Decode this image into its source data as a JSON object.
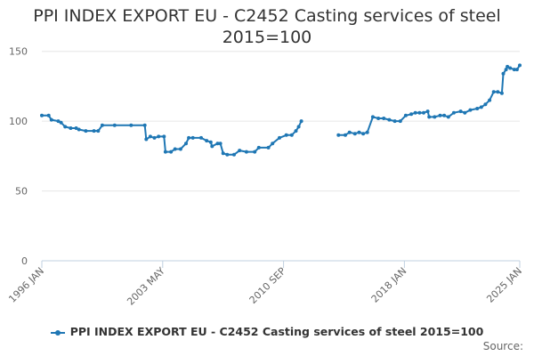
{
  "title_lines": [
    "PPI INDEX EXPORT EU - C2452 Casting services of steel",
    "2015=100"
  ],
  "legend_label": "PPI INDEX EXPORT EU - C2452 Casting services of steel 2015=100",
  "source_label": "Source:",
  "series_color": "#1f77b4",
  "chart_data": {
    "type": "line",
    "title": "PPI INDEX EXPORT EU - C2452 Casting services of steel 2015=100",
    "xlabel": "",
    "ylabel": "",
    "x_range": [
      "1996-01",
      "2025-01"
    ],
    "ylim": [
      0,
      160
    ],
    "y_ticks": [
      0,
      50,
      100,
      150
    ],
    "x_ticks": [
      {
        "date": "1996-01",
        "label": "1996 JAN"
      },
      {
        "date": "2003-05",
        "label": "2003 MAY"
      },
      {
        "date": "2010-09",
        "label": "2010 SEP"
      },
      {
        "date": "2018-01",
        "label": "2018 JAN"
      },
      {
        "date": "2025-01",
        "label": "2025 JAN"
      }
    ],
    "grid": "horizontal",
    "legend_position": "bottom",
    "series": [
      {
        "name": "PPI INDEX EXPORT EU - C2452 Casting services of steel 2015=100",
        "segments": [
          [
            [
              "1996-01",
              104
            ],
            [
              "1996-06",
              104
            ],
            [
              "1996-08",
              101
            ],
            [
              "1997-01",
              100
            ],
            [
              "1997-03",
              99
            ],
            [
              "1997-06",
              96
            ],
            [
              "1997-10",
              95
            ],
            [
              "1998-02",
              95
            ],
            [
              "1998-04",
              94
            ],
            [
              "1998-09",
              93
            ],
            [
              "1999-03",
              93
            ],
            [
              "1999-06",
              93
            ],
            [
              "1999-09",
              97
            ],
            [
              "2000-06",
              97
            ],
            [
              "2001-06",
              97
            ],
            [
              "2002-04",
              97
            ],
            [
              "2002-05",
              87
            ],
            [
              "2002-08",
              89
            ],
            [
              "2002-11",
              88
            ],
            [
              "2003-02",
              89
            ],
            [
              "2003-06",
              89
            ],
            [
              "2003-07",
              78
            ],
            [
              "2003-11",
              78
            ],
            [
              "2004-02",
              80
            ],
            [
              "2004-06",
              80
            ],
            [
              "2004-10",
              84
            ],
            [
              "2004-12",
              88
            ],
            [
              "2005-03",
              88
            ],
            [
              "2005-09",
              88
            ],
            [
              "2006-01",
              86
            ],
            [
              "2006-04",
              85
            ],
            [
              "2006-05",
              82
            ],
            [
              "2006-09",
              84
            ],
            [
              "2006-11",
              84
            ],
            [
              "2007-01",
              77
            ],
            [
              "2007-04",
              76
            ],
            [
              "2007-09",
              76
            ],
            [
              "2008-01",
              79
            ],
            [
              "2008-06",
              78
            ],
            [
              "2008-12",
              78
            ],
            [
              "2009-03",
              81
            ],
            [
              "2009-10",
              81
            ],
            [
              "2010-01",
              84
            ],
            [
              "2010-06",
              88
            ],
            [
              "2010-11",
              90
            ],
            [
              "2011-03",
              90
            ],
            [
              "2011-06",
              93
            ],
            [
              "2011-08",
              96
            ],
            [
              "2011-10",
              100
            ]
          ],
          [
            [
              "2014-01",
              90
            ],
            [
              "2014-06",
              90
            ],
            [
              "2014-09",
              92
            ],
            [
              "2015-01",
              91
            ],
            [
              "2015-04",
              92
            ],
            [
              "2015-07",
              91
            ],
            [
              "2015-10",
              92
            ],
            [
              "2016-02",
              103
            ],
            [
              "2016-06",
              102
            ],
            [
              "2016-10",
              102
            ],
            [
              "2017-02",
              101
            ],
            [
              "2017-06",
              100
            ],
            [
              "2017-10",
              100
            ],
            [
              "2018-02",
              104
            ],
            [
              "2018-06",
              105
            ],
            [
              "2018-09",
              106
            ],
            [
              "2018-12",
              106
            ],
            [
              "2019-03",
              106
            ],
            [
              "2019-06",
              107
            ],
            [
              "2019-07",
              103
            ],
            [
              "2019-11",
              103
            ],
            [
              "2020-03",
              104
            ],
            [
              "2020-06",
              104
            ],
            [
              "2020-09",
              103
            ],
            [
              "2021-01",
              106
            ],
            [
              "2021-06",
              107
            ],
            [
              "2021-09",
              106
            ],
            [
              "2022-01",
              108
            ],
            [
              "2022-06",
              109
            ],
            [
              "2022-09",
              110
            ],
            [
              "2022-12",
              112
            ],
            [
              "2023-03",
              115
            ],
            [
              "2023-06",
              121
            ],
            [
              "2023-09",
              121
            ],
            [
              "2023-12",
              120
            ],
            [
              "2024-01",
              134
            ],
            [
              "2024-03",
              137
            ],
            [
              "2024-04",
              139
            ],
            [
              "2024-06",
              138
            ],
            [
              "2024-09",
              137
            ],
            [
              "2024-11",
              137
            ],
            [
              "2025-01",
              140
            ]
          ]
        ]
      }
    ]
  }
}
